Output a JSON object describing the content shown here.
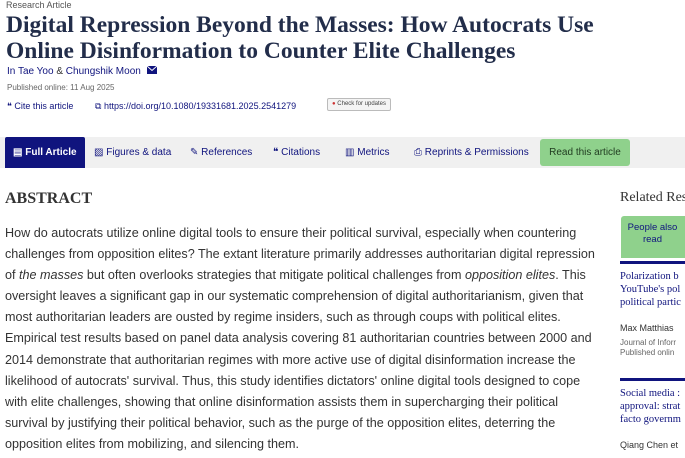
{
  "header": {
    "article_type": "Research Article",
    "title_lines": [
      "Digital Repression Beyond the Masses: How Autocrats Use",
      "Online Disinformation to Counter Elite Challenges"
    ],
    "authors": [
      "In Tae Yoo",
      "Chungshik Moon"
    ],
    "author_separator": "&",
    "published": "Published online: 11 Aug 2025"
  },
  "links": {
    "cite": "Cite this article",
    "doi": "https://doi.org/10.1080/19331681.2025.2541279",
    "updates": "Check for updates"
  },
  "tabs": [
    "Full Article",
    "Figures & data",
    "References",
    "Citations",
    "Metrics",
    "Reprints & Permissions"
  ],
  "read_button": "Read this article",
  "abstract": {
    "heading": "ABSTRACT",
    "parts": [
      "How do autocrats utilize online digital tools to ensure their political survival, especially when countering challenges from opposition elites? The extant literature primarily addresses authoritarian digital repression of ",
      "the masses",
      " but often overlooks strategies that mitigate political challenges from ",
      "opposition elites",
      ". This oversight leaves a significant gap in our systematic comprehension of digital authoritarianism, given that most authoritarian leaders are ousted by regime insiders, such as through coups with political elites. Empirical test results based on panel data analysis covering 81 authoritarian countries between 2000 and 2014 demonstrate that authoritarian regimes with more active use of digital disinformation increase the likelihood of autocrats' survival. Thus, this study identifies dictators' online digital tools designed to cope with elite challenges, showing that online disinformation assists them in supercharging their political survival by justifying their political behavior, such as the purge of the opposition elites, deterring the opposition elites from mobilizing, and silencing them."
    ]
  },
  "sidebar": {
    "heading": "Related Research",
    "people_also_read": "People also read",
    "items": [
      {
        "title_lines": [
          "Polarization b",
          "YouTube's pol",
          "political partic"
        ],
        "author": "Max Matthias",
        "journal": "Journal of Inforr",
        "published": "Published onlin"
      },
      {
        "title_lines": [
          "Social media :",
          "approval: strat",
          "facto governm"
        ],
        "author": "Qiang Chen et"
      }
    ]
  }
}
